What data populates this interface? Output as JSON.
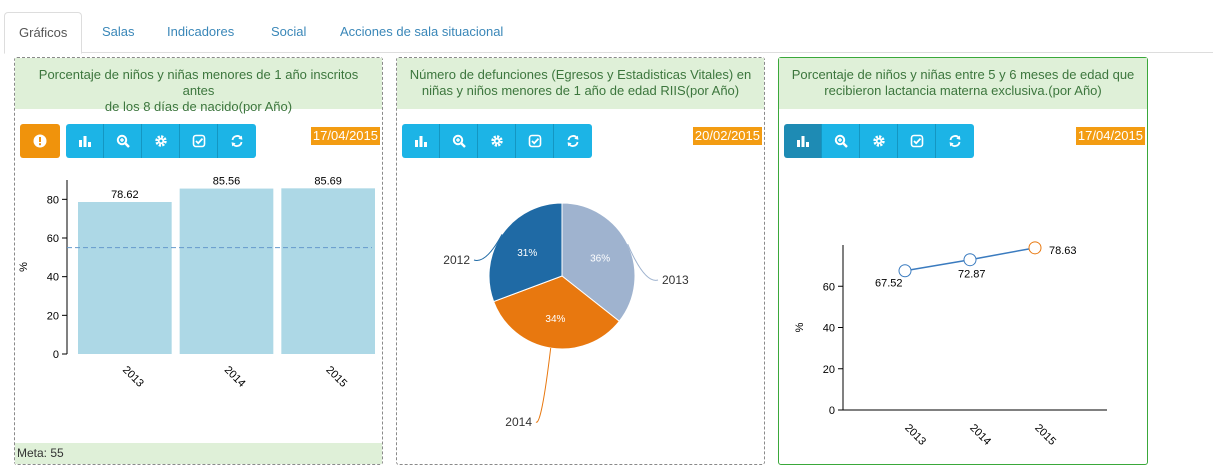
{
  "tabs": [
    {
      "label": "Gráficos",
      "active": true
    },
    {
      "label": "Salas",
      "active": false
    },
    {
      "label": "Indicadores",
      "active": false
    },
    {
      "label": "Social",
      "active": false
    },
    {
      "label": "Acciones de sala situacional",
      "active": false
    }
  ],
  "panels": [
    {
      "title_line1": "Porcentaje de niños y niñas menores de 1 año inscritos antes",
      "title_line2": "de los 8 días de nacido(por Año)",
      "date": "17/04/2015",
      "footer": "Meta: 55",
      "toolbar_icons": [
        "alert-icon",
        "bar-chart-icon",
        "zoom-icon",
        "gear-icon",
        "check-icon",
        "refresh-icon"
      ]
    },
    {
      "title_line1": "Número de defunciones (Egresos y Estadisticas Vitales) en",
      "title_line2": "niñas y niños menores de 1 año de edad RIIS(por Año)",
      "date": "20/02/2015",
      "toolbar_icons": [
        "bar-chart-icon",
        "zoom-icon",
        "gear-icon",
        "check-icon",
        "refresh-icon"
      ]
    },
    {
      "title_line1": "Porcentaje de niños y niñas entre 5 y 6 meses de edad que",
      "title_line2": "recibieron lactancia materna exclusiva.(por Año)",
      "date": "17/04/2015",
      "toolbar_icons": [
        "bar-chart-icon",
        "zoom-icon",
        "gear-icon",
        "check-icon",
        "refresh-icon"
      ]
    }
  ],
  "colors": {
    "bar": "#add8e6",
    "goal_line": "#6699cc",
    "pie_2013": "#9fb3cf",
    "pie_2014": "#e8780f",
    "pie_2012": "#1f6aa5",
    "line": "#3a7bbf",
    "point_last": "#e8780f"
  },
  "chart_data": [
    {
      "type": "bar",
      "categories": [
        "2013",
        "2014",
        "2015"
      ],
      "values": [
        78.62,
        85.56,
        85.69
      ],
      "value_labels": [
        "78.62",
        "85.56",
        "85.69"
      ],
      "ylabel": "%",
      "yticks": [
        "0",
        "20",
        "40",
        "60",
        "80"
      ],
      "ylim": [
        0,
        90
      ],
      "goal": 55
    },
    {
      "type": "pie",
      "categories": [
        "2013",
        "2014",
        "2012"
      ],
      "values": [
        36,
        34,
        31
      ],
      "value_labels": [
        "36%",
        "34%",
        "31%"
      ]
    },
    {
      "type": "line",
      "categories": [
        "2013",
        "2014",
        "2015"
      ],
      "values": [
        67.52,
        72.87,
        78.63
      ],
      "value_labels": [
        "67.52",
        "72.87",
        "78.63"
      ],
      "ylabel": "%",
      "yticks": [
        "0",
        "20",
        "40",
        "60"
      ],
      "ylim": [
        0,
        80
      ]
    }
  ]
}
